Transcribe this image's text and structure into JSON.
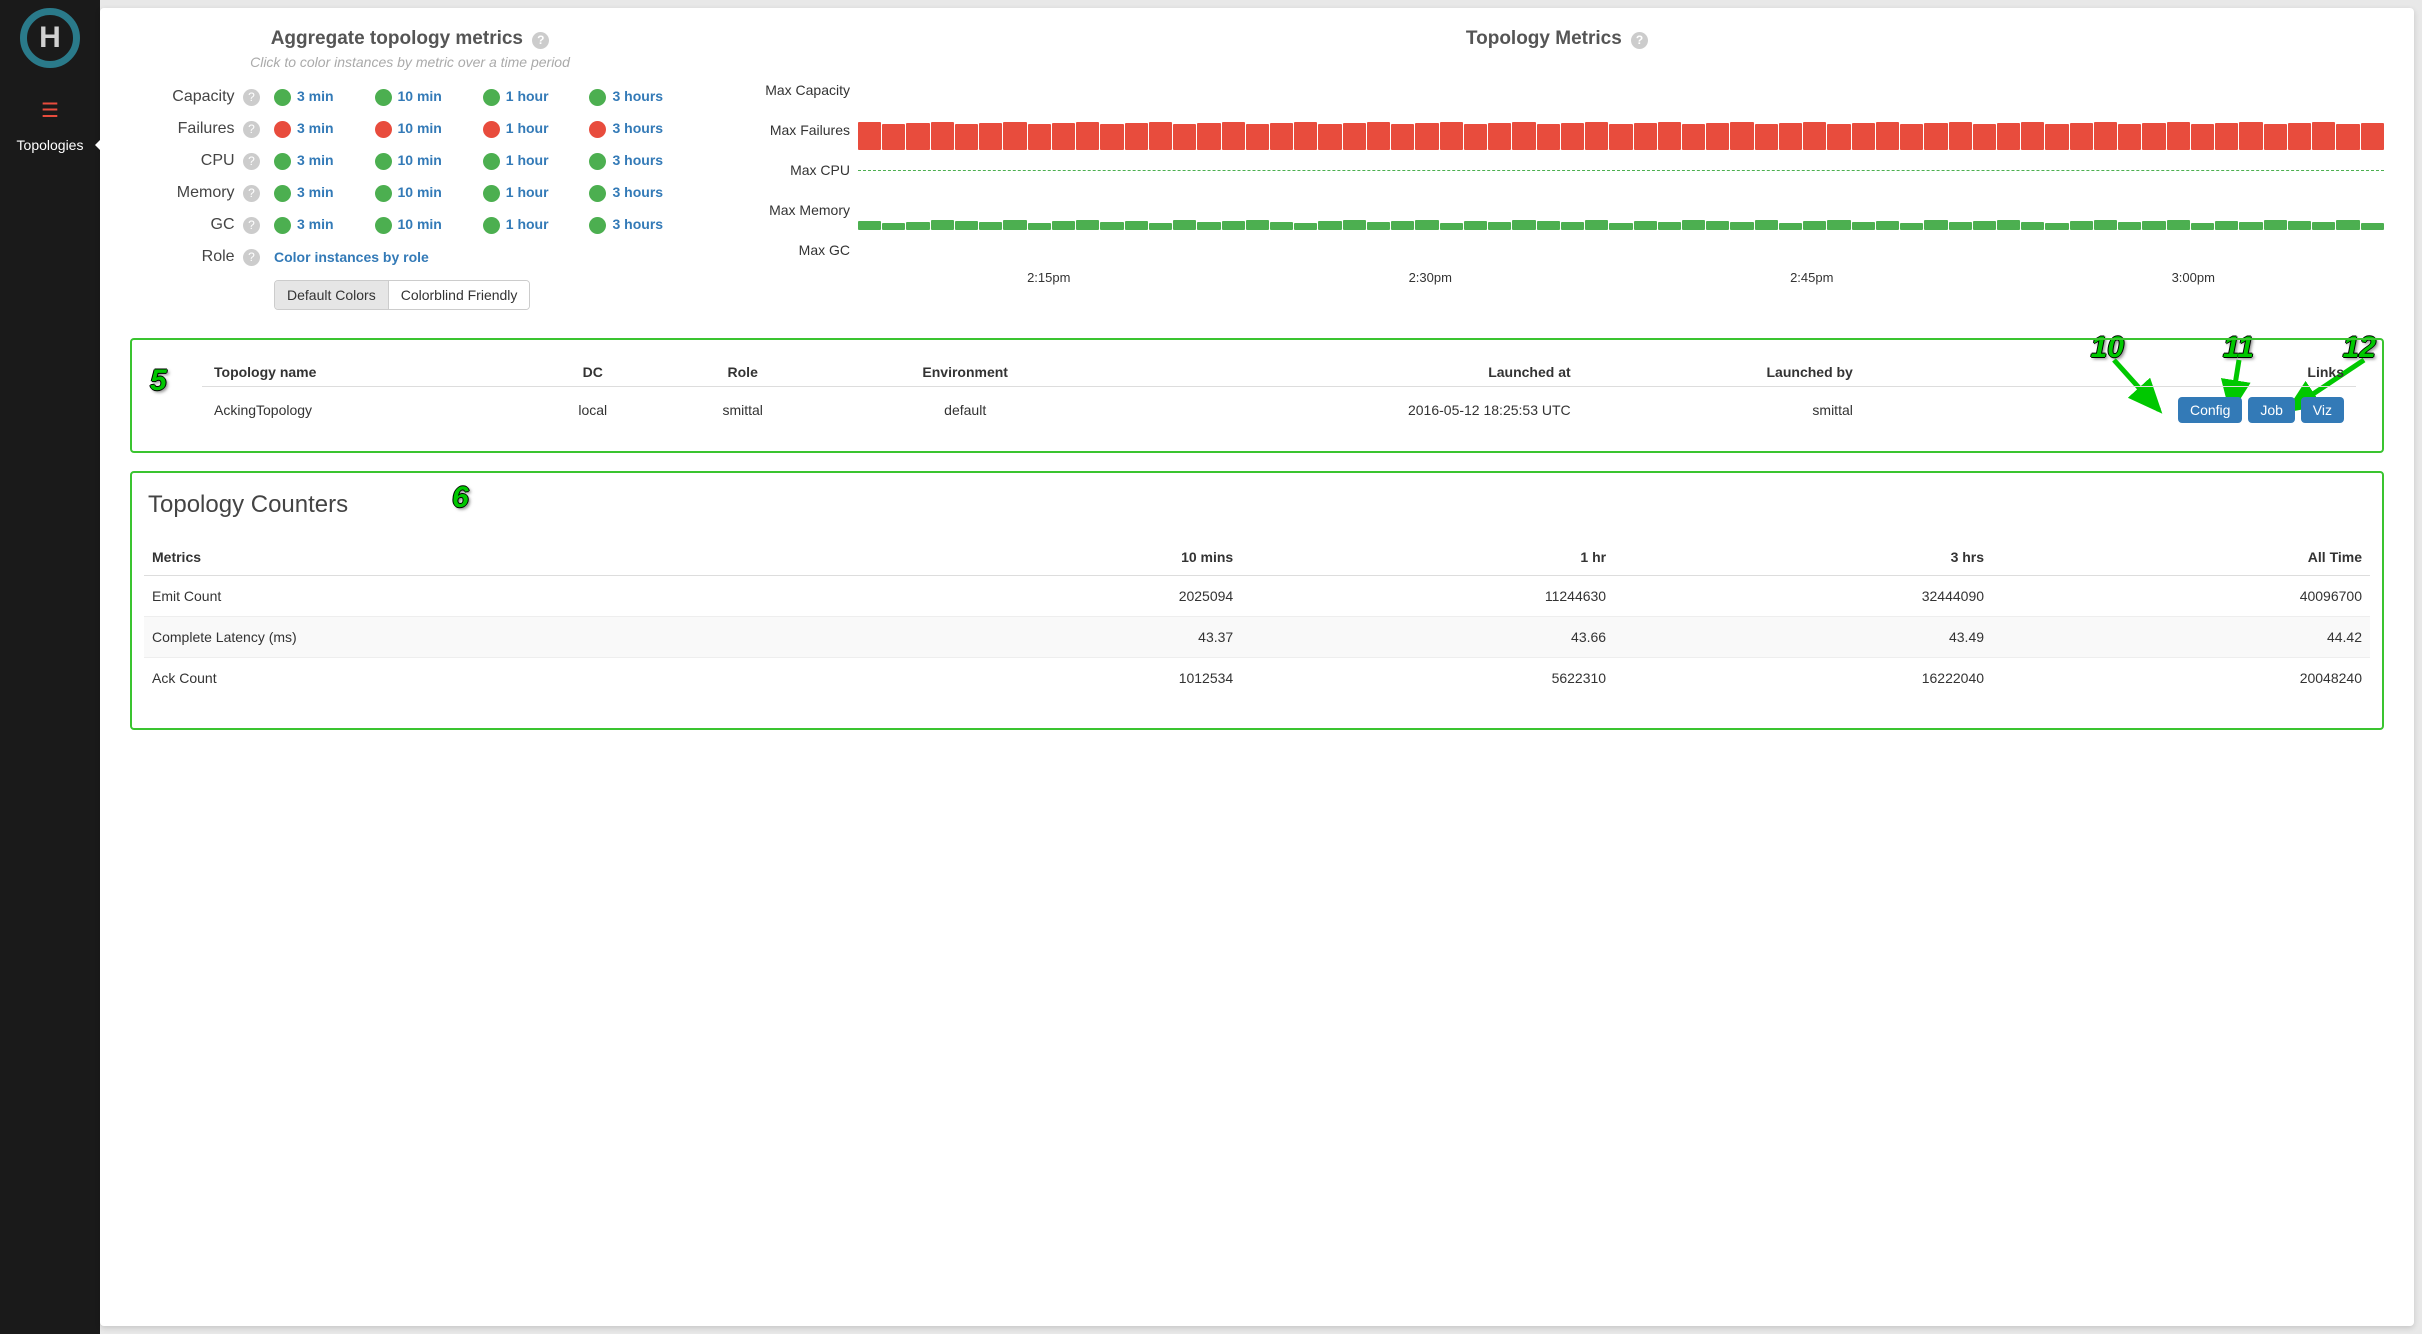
{
  "sidebar": {
    "nav_label": "Topologies"
  },
  "metrics_panel": {
    "title": "Aggregate topology metrics",
    "subtitle": "Click to color instances by metric over a time period",
    "rows": [
      {
        "label": "Capacity",
        "colors": [
          "#4caf50",
          "#4caf50",
          "#4caf50",
          "#4caf50"
        ]
      },
      {
        "label": "Failures",
        "colors": [
          "#e84c3d",
          "#e84c3d",
          "#e84c3d",
          "#e84c3d"
        ]
      },
      {
        "label": "CPU",
        "colors": [
          "#4caf50",
          "#4caf50",
          "#4caf50",
          "#4caf50"
        ]
      },
      {
        "label": "Memory",
        "colors": [
          "#4caf50",
          "#4caf50",
          "#4caf50",
          "#4caf50"
        ]
      },
      {
        "label": "GC",
        "colors": [
          "#4caf50",
          "#4caf50",
          "#4caf50",
          "#4caf50"
        ]
      }
    ],
    "periods": [
      "3 min",
      "10 min",
      "1 hour",
      "3 hours"
    ],
    "role_label": "Role",
    "role_link": "Color instances by role",
    "toggle": {
      "default": "Default Colors",
      "cb": "Colorblind Friendly",
      "active": "default"
    }
  },
  "chart_panel": {
    "title": "Topology Metrics",
    "rows": [
      {
        "label": "Max Capacity",
        "type": "empty"
      },
      {
        "label": "Max Failures",
        "type": "bars",
        "color": "#e84c3d",
        "heights": [
          28,
          26,
          27,
          28,
          26,
          27,
          28,
          26,
          27,
          28,
          26,
          27,
          28,
          26,
          27,
          28,
          26,
          27,
          28,
          26,
          27,
          28,
          26,
          27,
          28,
          26,
          27,
          28,
          26,
          27,
          28,
          26,
          27,
          28,
          26,
          27,
          28,
          26,
          27,
          28,
          26,
          27,
          28,
          26,
          27,
          28,
          26,
          27,
          28,
          26,
          27,
          28,
          26,
          27,
          28,
          26,
          27,
          28,
          26,
          27,
          28,
          26,
          27
        ]
      },
      {
        "label": "Max CPU",
        "type": "dashed",
        "color": "#4caf50"
      },
      {
        "label": "Max Memory",
        "type": "bars",
        "color": "#4caf50",
        "heights": [
          9,
          7,
          8,
          10,
          9,
          8,
          10,
          7,
          9,
          10,
          8,
          9,
          7,
          10,
          8,
          9,
          10,
          8,
          7,
          9,
          10,
          8,
          9,
          10,
          7,
          9,
          8,
          10,
          9,
          8,
          10,
          7,
          9,
          8,
          10,
          9,
          8,
          10,
          7,
          9,
          10,
          8,
          9,
          7,
          10,
          8,
          9,
          10,
          8,
          7,
          9,
          10,
          8,
          9,
          10,
          7,
          9,
          8,
          10,
          9,
          8,
          10,
          7
        ]
      },
      {
        "label": "Max GC",
        "type": "empty"
      }
    ],
    "xticks": [
      "2:15pm",
      "2:30pm",
      "2:45pm",
      "3:00pm"
    ]
  },
  "summary": {
    "headers": {
      "name": "Topology name",
      "dc": "DC",
      "role": "Role",
      "env": "Environment",
      "launched_at": "Launched at",
      "launched_by": "Launched by",
      "links": "Links"
    },
    "row": {
      "name": "AckingTopology",
      "dc": "local",
      "role": "smittal",
      "env": "default",
      "launched_at": "2016-05-12 18:25:53 UTC",
      "launched_by": "smittal"
    },
    "links": {
      "config": "Config",
      "job": "Job",
      "viz": "Viz"
    }
  },
  "counters": {
    "title": "Topology Counters",
    "headers": {
      "metric": "Metrics",
      "c10": "10 mins",
      "c1h": "1 hr",
      "c3h": "3 hrs",
      "all": "All Time"
    },
    "rows": [
      {
        "metric": "Emit Count",
        "c10": "2025094",
        "c1h": "11244630",
        "c3h": "32444090",
        "all": "40096700"
      },
      {
        "metric": "Complete Latency (ms)",
        "c10": "43.37",
        "c1h": "43.66",
        "c3h": "43.49",
        "all": "44.42"
      },
      {
        "metric": "Ack Count",
        "c10": "1012534",
        "c1h": "5622310",
        "c3h": "16222040",
        "all": "20048240"
      }
    ]
  },
  "annotations": {
    "m5": "5",
    "m6": "6",
    "m10": "10",
    "m11": "11",
    "m12": "12"
  },
  "colors": {
    "green": "#4caf50",
    "red": "#e84c3d",
    "link": "#337ab7",
    "btn": "#337ab7",
    "border_green": "#3ac430"
  }
}
